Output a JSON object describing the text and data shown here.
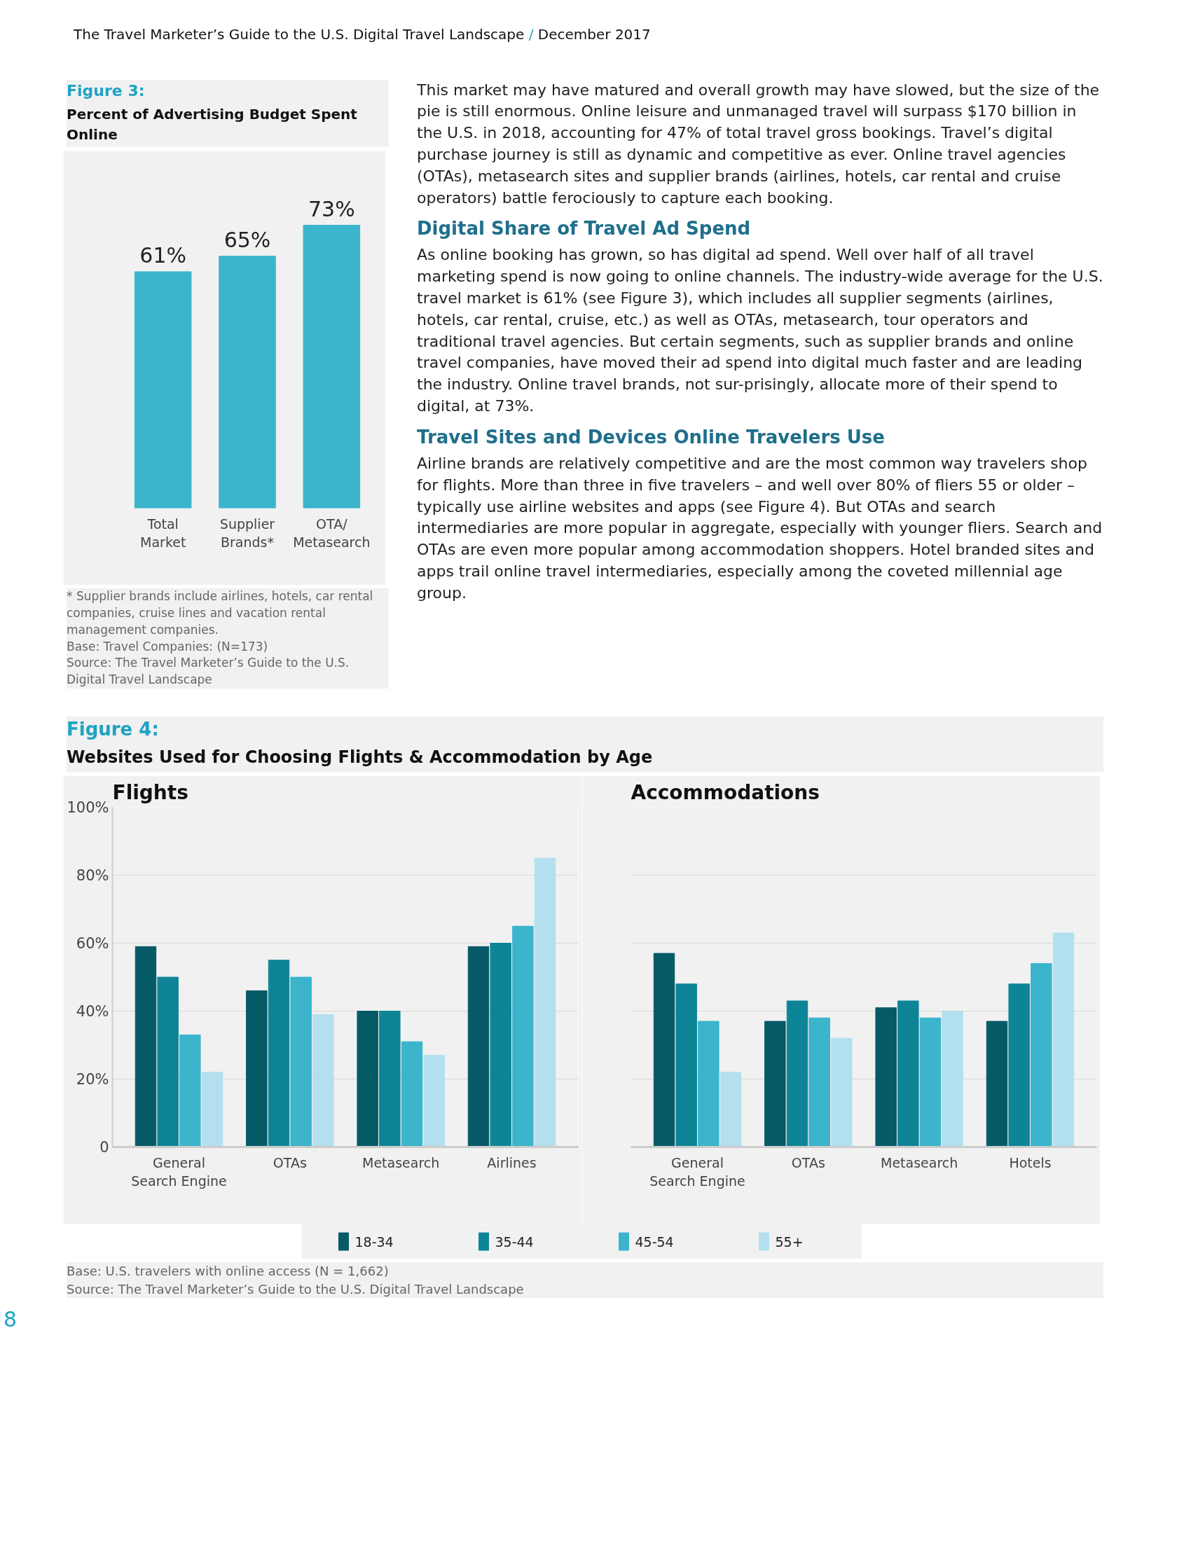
{
  "chart_data": [
    {
      "type": "other",
      "annotations": [
        "The Travel Marketer’s Guide to the U.S. Digital Travel Landscape",
        "/",
        "December 2017"
      ]
    },
    {
      "type": "bar",
      "title": "Figure 3:",
      "subtitle": "Percent of Advertising Budget Spent Online",
      "categories": [
        "Total\nMarket",
        "Supplier\nBrands*",
        "OTA/\nMetasearch"
      ],
      "values": [
        61,
        65,
        73
      ],
      "color": "#3bb4cc",
      "value_labels": [
        "61%",
        "65%",
        "73%"
      ],
      "annotations": [
        "* Supplier brands include airlines, hotels, car rental companies, cruise lines and vacation rental management companies.",
        "Base: Travel Companies: (N=173)",
        "Source: The Travel Marketer’s Guide to the U.S. Digital Travel Landscape"
      ]
    },
    {
      "type": "other",
      "annotations": [
        "This market may have matured and overall growth may have slowed, but the size of the pie is still enormous. Online leisure and unmanaged travel will surpass $170 billion in the U.S. in 2018, accounting for 47% of total travel gross bookings. Travel’s digital purchase journey is still as dynamic and competitive as ever. Online travel agencies (OTAs), metasearch sites and supplier brands (airlines, hotels, car rental and cruise operators) battle ferociously to capture each booking."
      ]
    },
    {
      "type": "other",
      "title": "Digital Share of Travel Ad Spend",
      "annotations": [
        "As online booking has grown, so has digital ad spend. Well over half of all travel marketing spend is now going to online channels. The industry-wide average for the U.S. travel market is 61% (see Figure 3), which includes all supplier segments (airlines, hotels, car rental, cruise, etc.) as well as OTAs, metasearch, tour operators and traditional travel agencies. But certain segments, such as supplier brands and online travel companies, have moved their ad spend into digital much faster and are leading the industry. Online travel brands, not sur-prisingly, allocate more of their spend to digital, at 73%."
      ]
    },
    {
      "type": "other",
      "title": "Travel Sites and Devices Online Travelers Use",
      "annotations": [
        "Airline brands are relatively competitive and are the most common way travelers shop for flights. More than three in five travelers – and well over 80% of fliers 55 or older – typically use airline websites and apps (see Figure 4). But OTAs and search intermediaries are more popular in aggregate, especially with younger fliers. Search and OTAs are even more popular among accommodation shoppers. Hotel branded sites and apps trail online travel intermediaries, especially among the coveted millennial age group."
      ]
    },
    {
      "type": "other",
      "title": "Figure 4:",
      "subtitle": "Websites Used for Choosing Flights & Accommodation by Age"
    },
    {
      "type": "bar",
      "title": "Flights",
      "categories": [
        "General\nSearch Engine",
        "OTAs",
        "Metasearch",
        "Airlines"
      ],
      "ylim": [
        0,
        100
      ],
      "yticks": [
        {
          "value": 0,
          "label": "0"
        },
        {
          "value": 20,
          "label": "20%"
        },
        {
          "value": 40,
          "label": "40%"
        },
        {
          "value": 60,
          "label": "60%"
        },
        {
          "value": 80,
          "label": "80%"
        },
        {
          "value": 100,
          "label": "100%"
        }
      ],
      "grid": "y",
      "legend": "bottom",
      "series": [
        {
          "name": "18-34",
          "color": "#055a66",
          "values": [
            59,
            46,
            40,
            59
          ]
        },
        {
          "name": "35-44",
          "color": "#0e8596",
          "values": [
            50,
            55,
            40,
            60
          ]
        },
        {
          "name": "45-54",
          "color": "#3bb4cc",
          "values": [
            33,
            50,
            31,
            65
          ]
        },
        {
          "name": "55+",
          "color": "#b3e0ee",
          "values": [
            22,
            39,
            27,
            85
          ]
        }
      ]
    },
    {
      "type": "bar",
      "title": "Accommodations",
      "categories": [
        "General\nSearch Engine",
        "OTAs",
        "Metasearch",
        "Hotels"
      ],
      "ylim": [
        0,
        100
      ],
      "yticks": [
        0,
        20,
        40,
        60,
        80,
        100
      ],
      "tick_labels": "x",
      "grid": "y",
      "legend": "bottom",
      "series": [
        {
          "name": "18-34",
          "color": "#055a66",
          "values": [
            57,
            37,
            41,
            37
          ]
        },
        {
          "name": "35-44",
          "color": "#0e8596",
          "values": [
            48,
            43,
            43,
            48
          ]
        },
        {
          "name": "45-54",
          "color": "#3bb4cc",
          "values": [
            37,
            38,
            38,
            54
          ]
        },
        {
          "name": "55+",
          "color": "#b3e0ee",
          "values": [
            22,
            32,
            40,
            63
          ]
        }
      ]
    },
    {
      "type": "other",
      "annotations": [
        "Base: U.S. travelers with online access (N = 1,662)",
        "Source: The Travel Marketer’s Guide to the U.S. Digital Travel Landscape"
      ]
    },
    {
      "type": "other",
      "annotations": [
        "8"
      ]
    }
  ]
}
